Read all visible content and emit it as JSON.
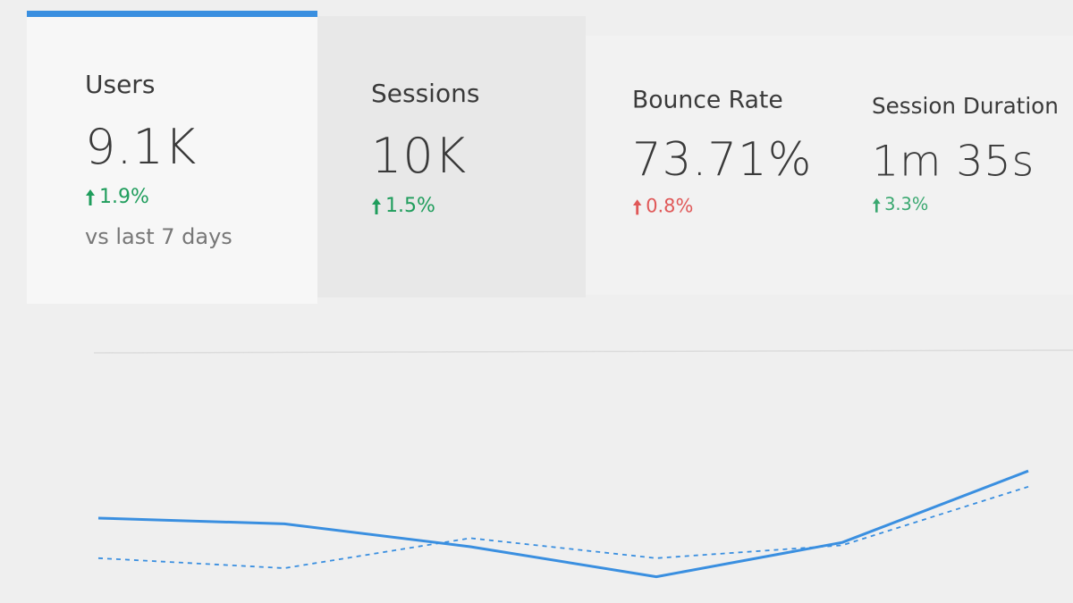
{
  "tabs": [
    {
      "label": "Users",
      "value": "9.1K",
      "change": "1.9%",
      "change_color": "#1f9d5c",
      "comparison": "vs last 7 days"
    },
    {
      "label": "Sessions",
      "value": "10K",
      "change": "1.5%",
      "change_color": "#1f9d5c"
    },
    {
      "label": "Bounce Rate",
      "value": "73.71%",
      "change": "0.8%",
      "change_color": "#e05858"
    },
    {
      "label": "Session Duration",
      "value": "1m 35s",
      "change": "3.3%",
      "change_color": "#3aa870"
    }
  ],
  "chart_data": {
    "type": "line",
    "categories": [
      null,
      null,
      null,
      null,
      null,
      null
    ],
    "series": [
      {
        "color": "#3a8fe0",
        "dashed": false,
        "values": [
          50,
          46,
          30,
          9,
          33,
          83
        ]
      },
      {
        "color": "#3a8fe0",
        "dashed": true,
        "values": [
          22,
          15,
          36,
          22,
          31,
          72
        ]
      }
    ],
    "ylim": [
      0,
      100
    ]
  }
}
